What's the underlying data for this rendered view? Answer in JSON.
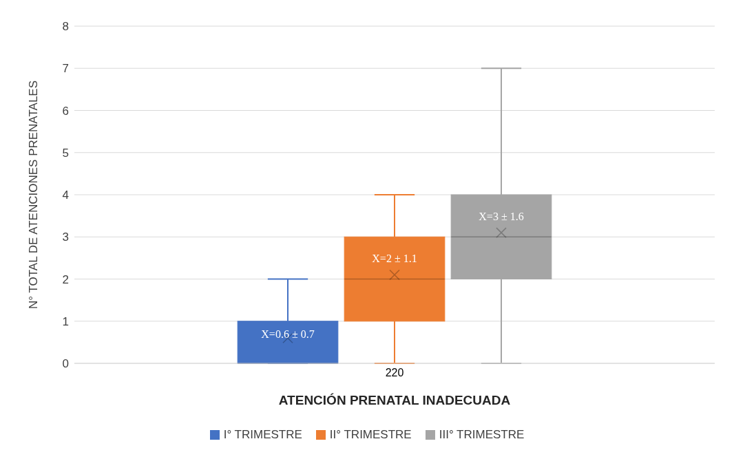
{
  "chart_data": {
    "type": "box",
    "categories": [
      "220"
    ],
    "xlabel": "ATENCIÓN PRENATAL INADECUADA",
    "ylabel": "N° TOTAL DE ATENCIONES PRENATALES",
    "ylim": [
      0,
      8
    ],
    "yticks": [
      0,
      1,
      2,
      3,
      4,
      5,
      6,
      7,
      8
    ],
    "grid": "y",
    "legend": "bottom",
    "annotations": [
      "X=0.6 ± 0.7",
      "X=2 ± 1.1",
      "X=3 ± 1.6"
    ],
    "series": [
      {
        "name": "I° TRIMESTRE",
        "color": "#4472c4",
        "boxes": [
          {
            "low": 0,
            "q1": 0,
            "median": 0,
            "q3": 1,
            "high": 2,
            "mean": 0.6
          }
        ]
      },
      {
        "name": "II° TRIMESTRE",
        "color": "#ed7d31",
        "boxes": [
          {
            "low": 0,
            "q1": 1,
            "median": 2,
            "q3": 3,
            "high": 4,
            "mean": 2.1
          }
        ]
      },
      {
        "name": "III° TRIMESTRE",
        "color": "#a5a5a5",
        "boxes": [
          {
            "low": 0,
            "q1": 2,
            "median": 3,
            "q3": 4,
            "high": 7,
            "mean": 3.1
          }
        ]
      }
    ]
  }
}
